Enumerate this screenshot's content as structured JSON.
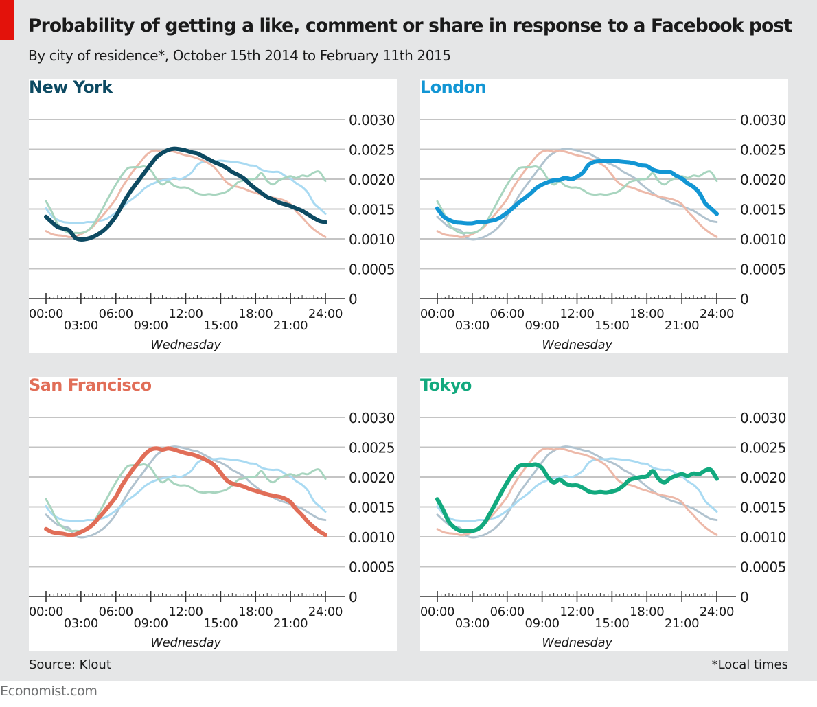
{
  "header": {
    "title": "Probability of getting a like, comment or share in response to a Facebook post",
    "subtitle": "By city of residence*, October 15th 2014 to February 11th 2015"
  },
  "footer": {
    "source": "Source: Klout",
    "note": "*Local times",
    "brand": "Economist.com"
  },
  "colors": {
    "new_york": "#0d4a62",
    "london": "#1296d4",
    "san_francisco": "#e16e58",
    "tokyo": "#12a97e",
    "new_york_faded": "#b1c3cf",
    "london_faded": "#a9daf2",
    "san_francisco_faded": "#edb9a9",
    "tokyo_faded": "#a8d5bf",
    "gridline": "#c4c4c4",
    "axis": "#333333",
    "text": "#1a1a1a"
  },
  "chart_data": {
    "type": "line",
    "day_label": "Wednesday",
    "x_unit": "hours (local time)",
    "x": [
      0,
      0.5,
      1,
      1.5,
      2,
      2.5,
      3,
      3.5,
      4,
      4.5,
      5,
      5.5,
      6,
      6.5,
      7,
      7.5,
      8,
      8.5,
      9,
      9.5,
      10,
      10.5,
      11,
      11.5,
      12,
      12.5,
      13,
      13.5,
      14,
      14.5,
      15,
      15.5,
      16,
      16.5,
      17,
      17.5,
      18,
      18.5,
      19,
      19.5,
      20,
      20.5,
      21,
      21.5,
      22,
      22.5,
      23,
      23.5,
      24
    ],
    "x_ticks": [
      0,
      3,
      6,
      9,
      12,
      15,
      18,
      21,
      24
    ],
    "x_tick_labels": [
      "00:00",
      "03:00",
      "06:00",
      "09:00",
      "12:00",
      "15:00",
      "18:00",
      "21:00",
      "24:00"
    ],
    "xlim": [
      0,
      24
    ],
    "ylim": [
      0,
      0.003
    ],
    "y_ticks": [
      0,
      0.0005,
      0.001,
      0.0015,
      0.002,
      0.0025,
      0.003
    ],
    "y_tick_labels": [
      "0",
      "0.0005",
      "0.0010",
      "0.0015",
      "0.0020",
      "0.0025",
      "0.0030"
    ],
    "series": [
      {
        "key": "new_york",
        "name": "New York",
        "values": [
          0.00137,
          0.00128,
          0.0012,
          0.00117,
          0.00114,
          0.00102,
          0.00099,
          0.001,
          0.00103,
          0.00108,
          0.00115,
          0.00125,
          0.00138,
          0.00155,
          0.00172,
          0.00186,
          0.00199,
          0.00212,
          0.00225,
          0.00237,
          0.00244,
          0.00249,
          0.00251,
          0.0025,
          0.00248,
          0.00245,
          0.00243,
          0.00238,
          0.00233,
          0.00228,
          0.00224,
          0.00219,
          0.00212,
          0.00207,
          0.00201,
          0.00192,
          0.00184,
          0.00177,
          0.0017,
          0.00166,
          0.00161,
          0.00158,
          0.00155,
          0.00151,
          0.00147,
          0.00141,
          0.00135,
          0.0013,
          0.00128
        ]
      },
      {
        "key": "london",
        "name": "London",
        "values": [
          0.00151,
          0.00138,
          0.00132,
          0.00128,
          0.00127,
          0.00126,
          0.00126,
          0.00128,
          0.00128,
          0.0013,
          0.00132,
          0.00137,
          0.00144,
          0.00152,
          0.00161,
          0.00168,
          0.00176,
          0.00185,
          0.00191,
          0.00195,
          0.00198,
          0.00199,
          0.00202,
          0.002,
          0.00204,
          0.00211,
          0.00224,
          0.00229,
          0.0023,
          0.0023,
          0.00231,
          0.0023,
          0.00229,
          0.00228,
          0.00226,
          0.00223,
          0.00222,
          0.00216,
          0.00213,
          0.00212,
          0.00212,
          0.00206,
          0.00201,
          0.00193,
          0.00187,
          0.00177,
          0.0016,
          0.00151,
          0.00142
        ]
      },
      {
        "key": "san_francisco",
        "name": "San Francisco",
        "values": [
          0.00113,
          0.00108,
          0.00106,
          0.00105,
          0.00103,
          0.00104,
          0.00108,
          0.00113,
          0.0012,
          0.00131,
          0.00142,
          0.00154,
          0.00167,
          0.00185,
          0.002,
          0.00214,
          0.00226,
          0.00238,
          0.00246,
          0.00248,
          0.00246,
          0.00248,
          0.00246,
          0.00243,
          0.0024,
          0.00238,
          0.00235,
          0.00231,
          0.00226,
          0.00219,
          0.00207,
          0.00195,
          0.00189,
          0.00187,
          0.00184,
          0.0018,
          0.00177,
          0.00174,
          0.00171,
          0.00169,
          0.00167,
          0.00164,
          0.00158,
          0.00146,
          0.00136,
          0.00125,
          0.00116,
          0.00109,
          0.00103
        ]
      },
      {
        "key": "tokyo",
        "name": "Tokyo",
        "values": [
          0.00163,
          0.00145,
          0.00125,
          0.00115,
          0.0011,
          0.0011,
          0.0011,
          0.00113,
          0.00122,
          0.00138,
          0.00156,
          0.00174,
          0.00191,
          0.00206,
          0.00218,
          0.0022,
          0.0022,
          0.00221,
          0.00215,
          0.002,
          0.00191,
          0.00196,
          0.00189,
          0.00186,
          0.00186,
          0.00182,
          0.00176,
          0.00174,
          0.00175,
          0.00174,
          0.00176,
          0.00179,
          0.00186,
          0.00195,
          0.00198,
          0.002,
          0.00201,
          0.0021,
          0.00197,
          0.00191,
          0.00198,
          0.00202,
          0.00205,
          0.00202,
          0.00206,
          0.00205,
          0.00211,
          0.00212,
          0.00197
        ]
      }
    ]
  },
  "panels": [
    {
      "key": "new_york",
      "title": "New York"
    },
    {
      "key": "london",
      "title": "London"
    },
    {
      "key": "san_francisco",
      "title": "San Francisco"
    },
    {
      "key": "tokyo",
      "title": "Tokyo"
    }
  ]
}
